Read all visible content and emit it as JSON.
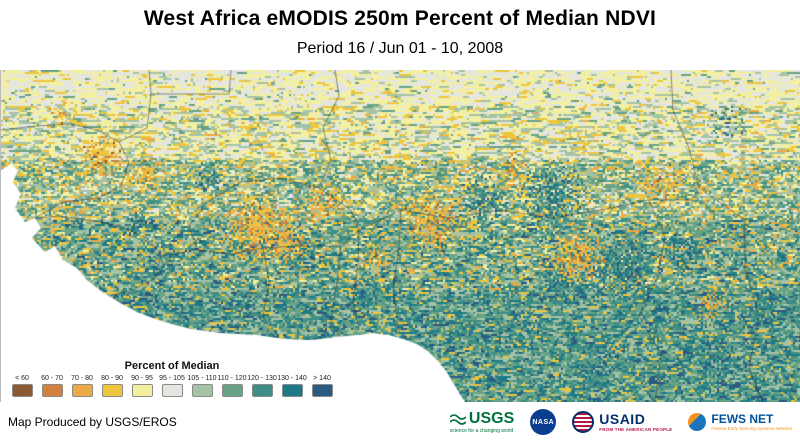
{
  "header": {
    "title": "West Africa eMODIS 250m Percent of Median NDVI",
    "subtitle": "Period 16 / Jun 01 - 10, 2008"
  },
  "legend": {
    "title": "Percent of Median",
    "classes": [
      {
        "label": "< 60",
        "color": "#8c5a32"
      },
      {
        "label": "60 - 70",
        "color": "#d2813c"
      },
      {
        "label": "70 - 80",
        "color": "#eaaa47"
      },
      {
        "label": "80 - 90",
        "color": "#edc63e"
      },
      {
        "label": "90 - 95",
        "color": "#f3f0a2"
      },
      {
        "label": "95 - 105",
        "color": "#e4e6df"
      },
      {
        "label": "105 - 110",
        "color": "#a5c3a5"
      },
      {
        "label": "110 - 120",
        "color": "#69a287"
      },
      {
        "label": "120 - 130",
        "color": "#3f8e85"
      },
      {
        "label": "130 - 140",
        "color": "#1e7a87"
      },
      {
        "label": "> 140",
        "color": "#2b5a80"
      }
    ]
  },
  "footer": {
    "credit": "Map Produced by USGS/EROS",
    "logos": {
      "usgs": {
        "name": "USGS",
        "tagline": "science for a changing world"
      },
      "nasa": {
        "name": "NASA"
      },
      "usaid": {
        "name": "USAID",
        "tagline": "FROM THE AMERICAN PEOPLE"
      },
      "fewsnet": {
        "name": "FEWS NET",
        "tagline": "Famine Early Warning Systems Network"
      }
    }
  }
}
